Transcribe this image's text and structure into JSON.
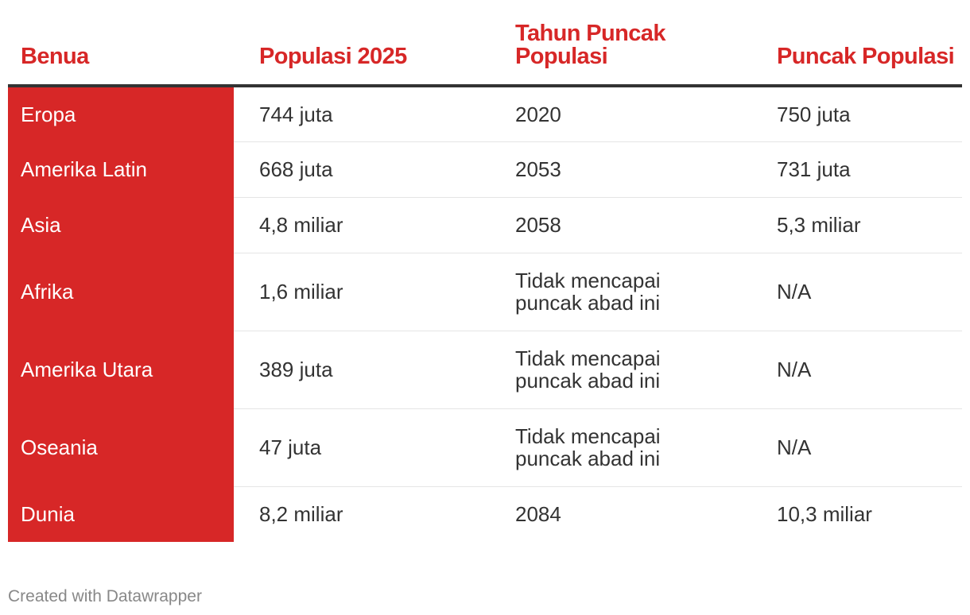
{
  "colors": {
    "accent": "#d72727",
    "text": "#333333",
    "footer": "#888888",
    "rule": "#333333"
  },
  "chart_data": {
    "type": "table",
    "columns": [
      "Benua",
      "Populasi 2025",
      "Tahun Puncak Populasi",
      "Puncak Populasi"
    ],
    "rows": [
      [
        "Eropa",
        "744 juta",
        "2020",
        "750 juta"
      ],
      [
        "Amerika Latin",
        "668 juta",
        "2053",
        "731 juta"
      ],
      [
        "Asia",
        "4,8 miliar",
        "2058",
        "5,3 miliar"
      ],
      [
        "Afrika",
        "1,6 miliar",
        "Tidak mencapai puncak abad ini",
        "N/A"
      ],
      [
        "Amerika Utara",
        "389 juta",
        "Tidak mencapai puncak abad ini",
        "N/A"
      ],
      [
        "Oseania",
        "47 juta",
        "Tidak mencapai puncak abad ini",
        "N/A"
      ],
      [
        "Dunia",
        "8,2 miliar",
        "2084",
        "10,3 miliar"
      ]
    ]
  },
  "footer": {
    "credit": "Created with Datawrapper"
  }
}
